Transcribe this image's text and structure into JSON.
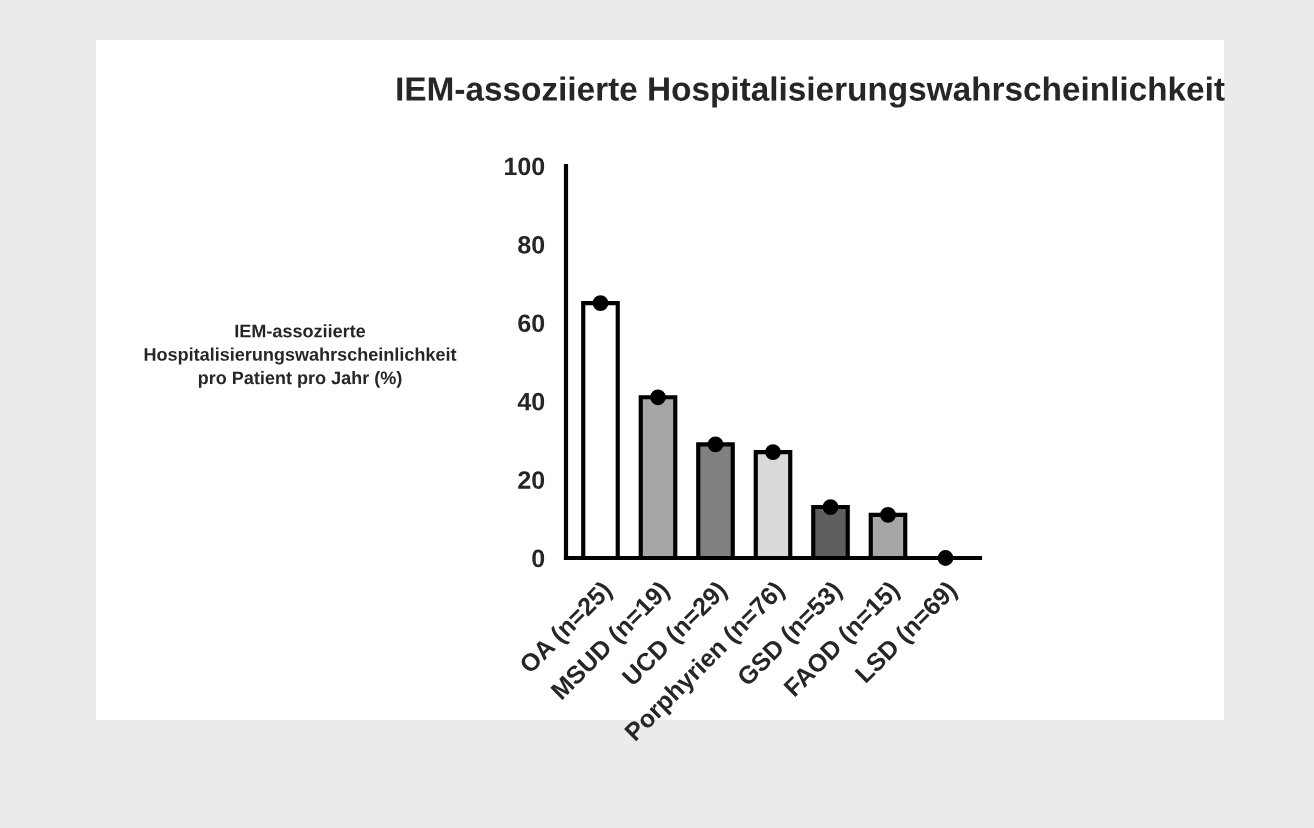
{
  "chart_data": {
    "type": "bar",
    "title": "IEM-assoziierte Hospitalisierungswahrscheinlichkeit",
    "ylabel": "IEM-assoziierte\nHospitalisierungswahrscheinlichkeit\npro Patient pro Jahr (%)",
    "categories": [
      "OA (n=25)",
      "MSUD (n=19)",
      "UCD (n=29)",
      "Porphyrien (n=76)",
      "GSD (n=53)",
      "FAOD (n=15)",
      "LSD (n=69)"
    ],
    "series": [
      {
        "colors": [
          "#ffffff",
          "#a6a6a6",
          "#808080",
          "#d9d9d9",
          "#5f5f5f",
          "#a6a6a6",
          "#000000"
        ],
        "values": [
          65,
          41,
          29,
          27,
          13,
          11,
          0
        ]
      },
      {
        "type": "scatter",
        "color": "#000000",
        "x": [
          "OA (n=25)",
          "MSUD (n=19)",
          "UCD (n=29)",
          "Porphyrien (n=76)",
          "GSD (n=53)",
          "FAOD (n=15)",
          "LSD (n=69)"
        ],
        "values": [
          65,
          41,
          29,
          27,
          13,
          11,
          0
        ]
      }
    ],
    "ylim": [
      0,
      100
    ],
    "yticks": [
      0,
      20,
      40,
      60,
      80,
      100
    ],
    "grid": false,
    "legend": false,
    "marker": "circle"
  }
}
